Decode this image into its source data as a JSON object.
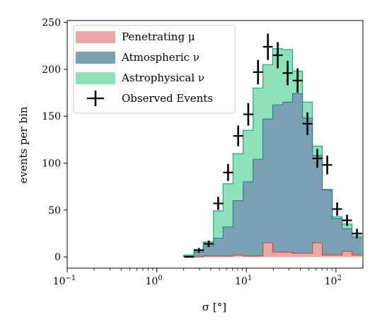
{
  "chart_data": {
    "type": "area",
    "x_scale": "log",
    "xlim": [
      0.1,
      200
    ],
    "ylim": [
      -12,
      252
    ],
    "xlabel": "σ [°]",
    "ylabel": "events per bin",
    "x_ticks": [
      {
        "value": 0.1,
        "base": "10",
        "exp": "−1"
      },
      {
        "value": 1,
        "base": "10",
        "exp": "0"
      },
      {
        "value": 10,
        "base": "10",
        "exp": "1"
      },
      {
        "value": 100,
        "base": "10",
        "exp": "2"
      }
    ],
    "y_ticks": [
      0,
      50,
      100,
      150,
      200,
      250
    ],
    "legend_position": "top-left",
    "legend": [
      {
        "label": "Penetrating μ",
        "kind": "patch",
        "key": "penetrating"
      },
      {
        "label": "Atmospheric ν",
        "kind": "patch",
        "key": "atmospheric"
      },
      {
        "label": "Astrophysical ν",
        "kind": "patch",
        "key": "astrophysical"
      },
      {
        "label": "Observed Events",
        "kind": "errorbar",
        "key": "observed"
      }
    ],
    "bin_edges": [
      2.0,
      2.6,
      3.3,
      4.3,
      5.5,
      7.1,
      9.2,
      11.9,
      15.3,
      19.7,
      25.4,
      32.8,
      42.3,
      54.6,
      70.4,
      90.8,
      117.2,
      151.2,
      195.0
    ],
    "series": [
      {
        "name": "Astrophysical ν",
        "key": "astrophysical",
        "color": "#8fe0bb",
        "edge": "#1ea882",
        "values": [
          2,
          8,
          16,
          49,
          78,
          110,
          135,
          180,
          205,
          222,
          221,
          198,
          165,
          118,
          72,
          43,
          35,
          25
        ]
      },
      {
        "name": "Atmospheric ν",
        "key": "atmospheric",
        "color": "#7aa0b1",
        "edge": "#2e7f86",
        "values": [
          1,
          5,
          12,
          20,
          32,
          60,
          80,
          104,
          147,
          162,
          165,
          174,
          148,
          108,
          71,
          41,
          30,
          21
        ]
      },
      {
        "name": "Penetrating μ",
        "key": "penetrating",
        "color": "#e8a9a8",
        "edge": "#c54848",
        "values": [
          0,
          0,
          1,
          1,
          1,
          2,
          1,
          1,
          15,
          5,
          5,
          4,
          4,
          15,
          2,
          2,
          6,
          2
        ]
      }
    ],
    "observed": {
      "name": "Observed Events",
      "points": [
        {
          "x": 2.3,
          "y": 0,
          "yerr": 0
        },
        {
          "x": 2.95,
          "y": 7,
          "yerr": 2.5
        },
        {
          "x": 3.8,
          "y": 14,
          "yerr": 3.5
        },
        {
          "x": 4.85,
          "y": 57,
          "yerr": 7
        },
        {
          "x": 6.25,
          "y": 90,
          "yerr": 9
        },
        {
          "x": 8.1,
          "y": 129,
          "yerr": 11
        },
        {
          "x": 10.5,
          "y": 152,
          "yerr": 12
        },
        {
          "x": 13.5,
          "y": 197,
          "yerr": 13
        },
        {
          "x": 17.4,
          "y": 224,
          "yerr": 14
        },
        {
          "x": 22.4,
          "y": 215,
          "yerr": 14
        },
        {
          "x": 28.9,
          "y": 196,
          "yerr": 13
        },
        {
          "x": 37.3,
          "y": 188,
          "yerr": 13
        },
        {
          "x": 48.1,
          "y": 142,
          "yerr": 12
        },
        {
          "x": 62.0,
          "y": 105,
          "yerr": 10
        },
        {
          "x": 80.0,
          "y": 98,
          "yerr": 10
        },
        {
          "x": 103.2,
          "y": 51,
          "yerr": 7
        },
        {
          "x": 133.1,
          "y": 39,
          "yerr": 6
        },
        {
          "x": 171.7,
          "y": 25,
          "yerr": 5
        }
      ]
    }
  }
}
